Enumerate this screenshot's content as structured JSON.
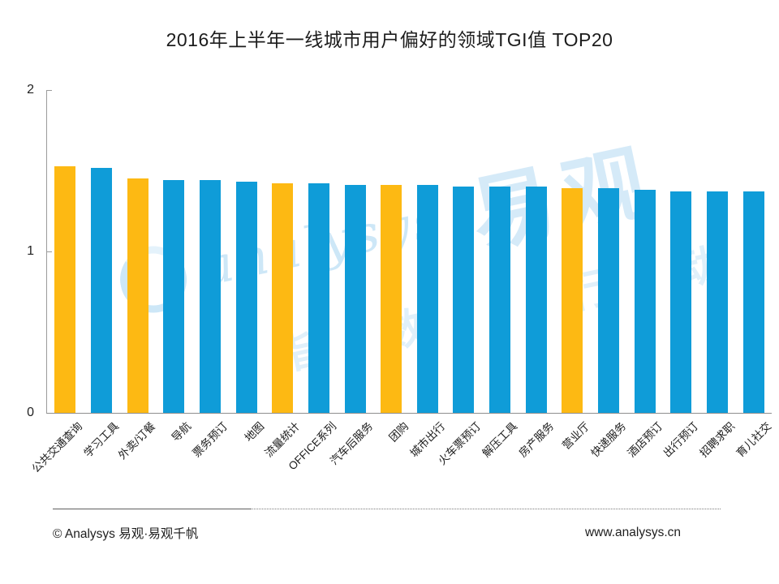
{
  "title": "2016年上半年一线城市用户偏好的领域TGI值 TOP20",
  "chart_data": {
    "type": "bar",
    "title": "2016年上半年一线城市用户偏好的领域TGI值 TOP20",
    "xlabel": "",
    "ylabel": "",
    "ylim": [
      0,
      2
    ],
    "yticks": [
      0,
      1,
      2
    ],
    "grid": false,
    "legend": "none",
    "categories": [
      "公共交通查询",
      "学习工具",
      "外卖/订餐",
      "导航",
      "票务预订",
      "地图",
      "流量统计",
      "OFFICE系列",
      "汽车后服务",
      "团购",
      "城市出行",
      "火车票预订",
      "解压工具",
      "房产服务",
      "营业厅",
      "快递服务",
      "酒店预订",
      "出行预订",
      "招聘求职",
      "育儿社交"
    ],
    "values": [
      1.53,
      1.52,
      1.45,
      1.44,
      1.44,
      1.43,
      1.42,
      1.42,
      1.41,
      1.41,
      1.41,
      1.4,
      1.4,
      1.4,
      1.39,
      1.39,
      1.38,
      1.37,
      1.37,
      1.37
    ],
    "highlighted_indices": [
      0,
      2,
      6,
      9,
      14
    ],
    "colors": {
      "bar_blue": "#0F9CD8",
      "bar_orange": "#FDB913",
      "axis_gray": "#9B9B9B"
    }
  },
  "watermark": {
    "script_text": "analysys",
    "brand_text": "易观",
    "faint_text_1": "指数",
    "faint_text_2": "行动",
    "color": "#D5EAF8"
  },
  "footer": {
    "left": "© Analysys  易观·易观千帆",
    "right": "www.analysys.cn"
  }
}
